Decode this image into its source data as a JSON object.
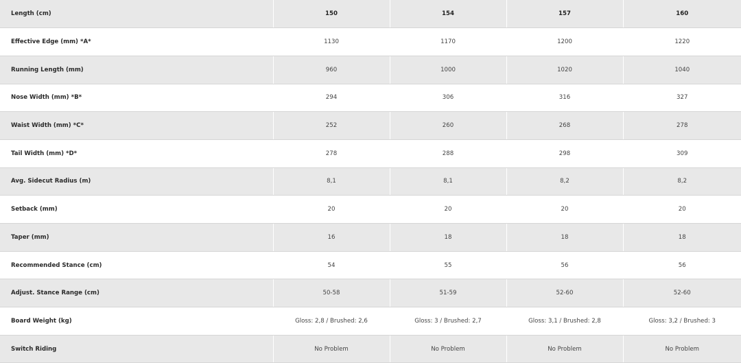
{
  "table": {
    "rows": [
      {
        "label": "Length (cm)",
        "values": [
          "150",
          "154",
          "157",
          "160"
        ]
      },
      {
        "label": "Effective Edge (mm)  *A*",
        "values": [
          "1130",
          "1170",
          "1200",
          "1220"
        ]
      },
      {
        "label": "Running Length (mm)",
        "values": [
          "960",
          "1000",
          "1020",
          "1040"
        ]
      },
      {
        "label": "Nose Width (mm)  *B*",
        "values": [
          "294",
          "306",
          "316",
          "327"
        ]
      },
      {
        "label": "Waist Width (mm)  *C*",
        "values": [
          "252",
          "260",
          "268",
          "278"
        ]
      },
      {
        "label": "Tail Width (mm)  *D*",
        "values": [
          "278",
          "288",
          "298",
          "309"
        ]
      },
      {
        "label": "Avg. Sidecut Radius (m)",
        "values": [
          "8,1",
          "8,1",
          "8,2",
          "8,2"
        ]
      },
      {
        "label": "Setback (mm)",
        "values": [
          "20",
          "20",
          "20",
          "20"
        ]
      },
      {
        "label": "Taper (mm)",
        "values": [
          "16",
          "18",
          "18",
          "18"
        ]
      },
      {
        "label": "Recommended Stance (cm)",
        "values": [
          "54",
          "55",
          "56",
          "56"
        ]
      },
      {
        "label": "Adjust. Stance Range (cm)",
        "values": [
          "50-58",
          "51-59",
          "52-60",
          "52-60"
        ]
      },
      {
        "label": "Board Weight (kg)",
        "values": [
          "Gloss: 2,8 / Brushed: 2,6",
          "Gloss: 3 / Brushed: 2,7",
          "Gloss: 3,1 / Brushed: 2,8",
          "Gloss: 3,2 / Brushed: 3"
        ]
      },
      {
        "label": "Switch Riding",
        "values": [
          "No Problem",
          "No Problem",
          "No Problem",
          "No Problem"
        ]
      }
    ]
  }
}
